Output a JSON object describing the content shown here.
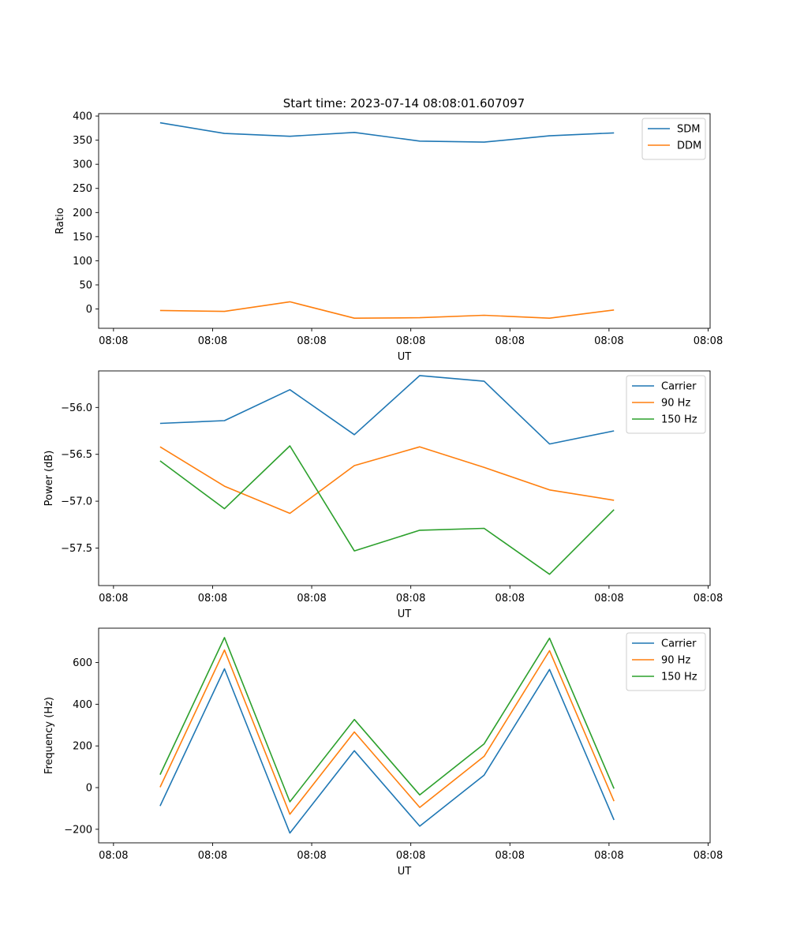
{
  "figure": {
    "title": "Start time: 2023-07-14 08:08:01.607097"
  },
  "chart_data": [
    {
      "type": "line",
      "title": "Start time: 2023-07-14 08:08:01.607097",
      "xlabel": "UT",
      "ylabel": "Ratio",
      "x_tick_labels": [
        "08:08",
        "08:08",
        "08:08",
        "08:08",
        "08:08",
        "08:08",
        "08:08"
      ],
      "x_tick_positions": [
        0,
        1,
        2,
        3,
        4,
        5,
        6
      ],
      "x": [
        0.47,
        1.12,
        1.78,
        2.43,
        3.09,
        3.74,
        4.4,
        5.05
      ],
      "xlim": [
        -0.15,
        6.02
      ],
      "ylim": [
        -40,
        405
      ],
      "y_ticks": [
        0,
        50,
        100,
        150,
        200,
        250,
        300,
        350,
        400
      ],
      "legend_position": "upper right",
      "series": [
        {
          "name": "SDM",
          "color": "#1f77b4",
          "values": [
            386,
            364,
            358,
            366,
            348,
            346,
            359,
            365
          ]
        },
        {
          "name": "DDM",
          "color": "#ff7f0e",
          "values": [
            -3,
            -5,
            15,
            -19,
            -18,
            -13,
            -19,
            -2
          ]
        }
      ]
    },
    {
      "type": "line",
      "title": "",
      "xlabel": "UT",
      "ylabel": "Power (dB)",
      "x_tick_labels": [
        "08:08",
        "08:08",
        "08:08",
        "08:08",
        "08:08",
        "08:08",
        "08:08"
      ],
      "x_tick_positions": [
        0,
        1,
        2,
        3,
        4,
        5,
        6
      ],
      "x": [
        0.47,
        1.12,
        1.78,
        2.43,
        3.09,
        3.74,
        4.4,
        5.05
      ],
      "xlim": [
        -0.15,
        6.02
      ],
      "ylim": [
        -57.9,
        -55.61
      ],
      "y_ticks": [
        -57.5,
        -57.0,
        -56.5,
        -56.0
      ],
      "y_tick_labels": [
        "−57.5",
        "−57.0",
        "−56.5",
        "−56.0"
      ],
      "legend_position": "upper right",
      "series": [
        {
          "name": "Carrier",
          "color": "#1f77b4",
          "values": [
            -56.17,
            -56.14,
            -55.81,
            -56.29,
            -55.66,
            -55.72,
            -56.39,
            -56.25
          ]
        },
        {
          "name": "90 Hz",
          "color": "#ff7f0e",
          "values": [
            -56.42,
            -56.84,
            -57.13,
            -56.62,
            -56.42,
            -56.64,
            -56.88,
            -56.99
          ]
        },
        {
          "name": "150 Hz",
          "color": "#2ca02c",
          "values": [
            -56.57,
            -57.08,
            -56.41,
            -57.53,
            -57.31,
            -57.29,
            -57.78,
            -57.09
          ]
        }
      ]
    },
    {
      "type": "line",
      "title": "",
      "xlabel": "UT",
      "ylabel": "Frequency (Hz)",
      "x_tick_labels": [
        "08:08",
        "08:08",
        "08:08",
        "08:08",
        "08:08",
        "08:08",
        "08:08"
      ],
      "x_tick_positions": [
        0,
        1,
        2,
        3,
        4,
        5,
        6
      ],
      "x": [
        0.47,
        1.12,
        1.78,
        2.43,
        3.09,
        3.74,
        4.4,
        5.05
      ],
      "xlim": [
        -0.15,
        6.02
      ],
      "ylim": [
        -265,
        765
      ],
      "y_ticks": [
        -200,
        0,
        200,
        400,
        600
      ],
      "y_tick_labels": [
        "−200",
        "0",
        "200",
        "400",
        "600"
      ],
      "legend_position": "upper right",
      "series": [
        {
          "name": "Carrier",
          "color": "#1f77b4",
          "values": [
            -88,
            570,
            -218,
            177,
            -185,
            60,
            567,
            -155
          ]
        },
        {
          "name": "90 Hz",
          "color": "#ff7f0e",
          "values": [
            2,
            660,
            -128,
            267,
            -95,
            150,
            657,
            -65
          ]
        },
        {
          "name": "150 Hz",
          "color": "#2ca02c",
          "values": [
            62,
            720,
            -68,
            327,
            -35,
            210,
            717,
            -5
          ]
        }
      ]
    }
  ]
}
